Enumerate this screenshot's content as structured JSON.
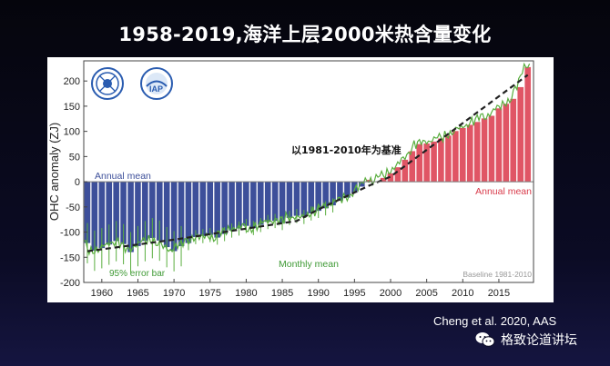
{
  "slide": {
    "title": "1958-2019,海洋上层2000米热含量变化",
    "citation": "Cheng et al. 2020, AAS",
    "watermark": "格致论道讲坛",
    "logos": [
      "CAS emblem",
      "IAP logo"
    ]
  },
  "chart_data": {
    "type": "bar",
    "title": "1958-2019,海洋上层2000米热含量变化",
    "ylabel": "OHC anomaly (ZJ)",
    "xlabel": "",
    "xlim": [
      1957.5,
      2019.8
    ],
    "ylim": [
      -200,
      240
    ],
    "xticks": [
      1960,
      1965,
      1970,
      1975,
      1980,
      1985,
      1990,
      1995,
      2000,
      2005,
      2010,
      2015
    ],
    "yticks": [
      -200,
      -150,
      -100,
      -50,
      0,
      50,
      100,
      150,
      200
    ],
    "annotations": {
      "baseline_cn": "以1981-2010年为基准",
      "annual_mean_left": "Annual mean",
      "annual_mean_right": "Annual mean",
      "monthly_mean": "Monthly mean",
      "error_bar": "95% error bar",
      "baseline": "Baseline 1981-2010"
    },
    "colors": {
      "negative": "#3d4f9a",
      "positive": "#e05565",
      "monthly": "#5aae3f",
      "trend": "#222222",
      "neg_text": "#3d4f9a",
      "pos_text": "#d83a4a",
      "green_text": "#3f9a35"
    },
    "series": [
      {
        "name": "Annual mean",
        "x": [
          1958,
          1959,
          1960,
          1961,
          1962,
          1963,
          1964,
          1965,
          1966,
          1967,
          1968,
          1969,
          1970,
          1971,
          1972,
          1973,
          1974,
          1975,
          1976,
          1977,
          1978,
          1979,
          1980,
          1981,
          1982,
          1983,
          1984,
          1985,
          1986,
          1987,
          1988,
          1989,
          1990,
          1991,
          1992,
          1993,
          1994,
          1995,
          1996,
          1997,
          1998,
          1999,
          2000,
          2001,
          2002,
          2003,
          2004,
          2005,
          2006,
          2007,
          2008,
          2009,
          2010,
          2011,
          2012,
          2013,
          2014,
          2015,
          2016,
          2017,
          2018,
          2019
        ],
        "values": [
          -122,
          -137,
          -132,
          -125,
          -118,
          -124,
          -140,
          -128,
          -118,
          -112,
          -117,
          -130,
          -138,
          -128,
          -122,
          -110,
          -108,
          -106,
          -111,
          -104,
          -97,
          -93,
          -88,
          -92,
          -86,
          -80,
          -78,
          -82,
          -72,
          -68,
          -70,
          -63,
          -58,
          -53,
          -47,
          -38,
          -32,
          -22,
          -10,
          4,
          0,
          8,
          17,
          29,
          44,
          61,
          75,
          76,
          80,
          86,
          92,
          101,
          107,
          113,
          119,
          126,
          131,
          146,
          155,
          165,
          188,
          228
        ]
      },
      {
        "name": "Trend",
        "x": [
          1958,
          1970,
          1987,
          1990,
          1997,
          2000,
          2019
        ],
        "values": [
          -138,
          -115,
          -78,
          -55,
          -8,
          10,
          212
        ]
      }
    ]
  }
}
